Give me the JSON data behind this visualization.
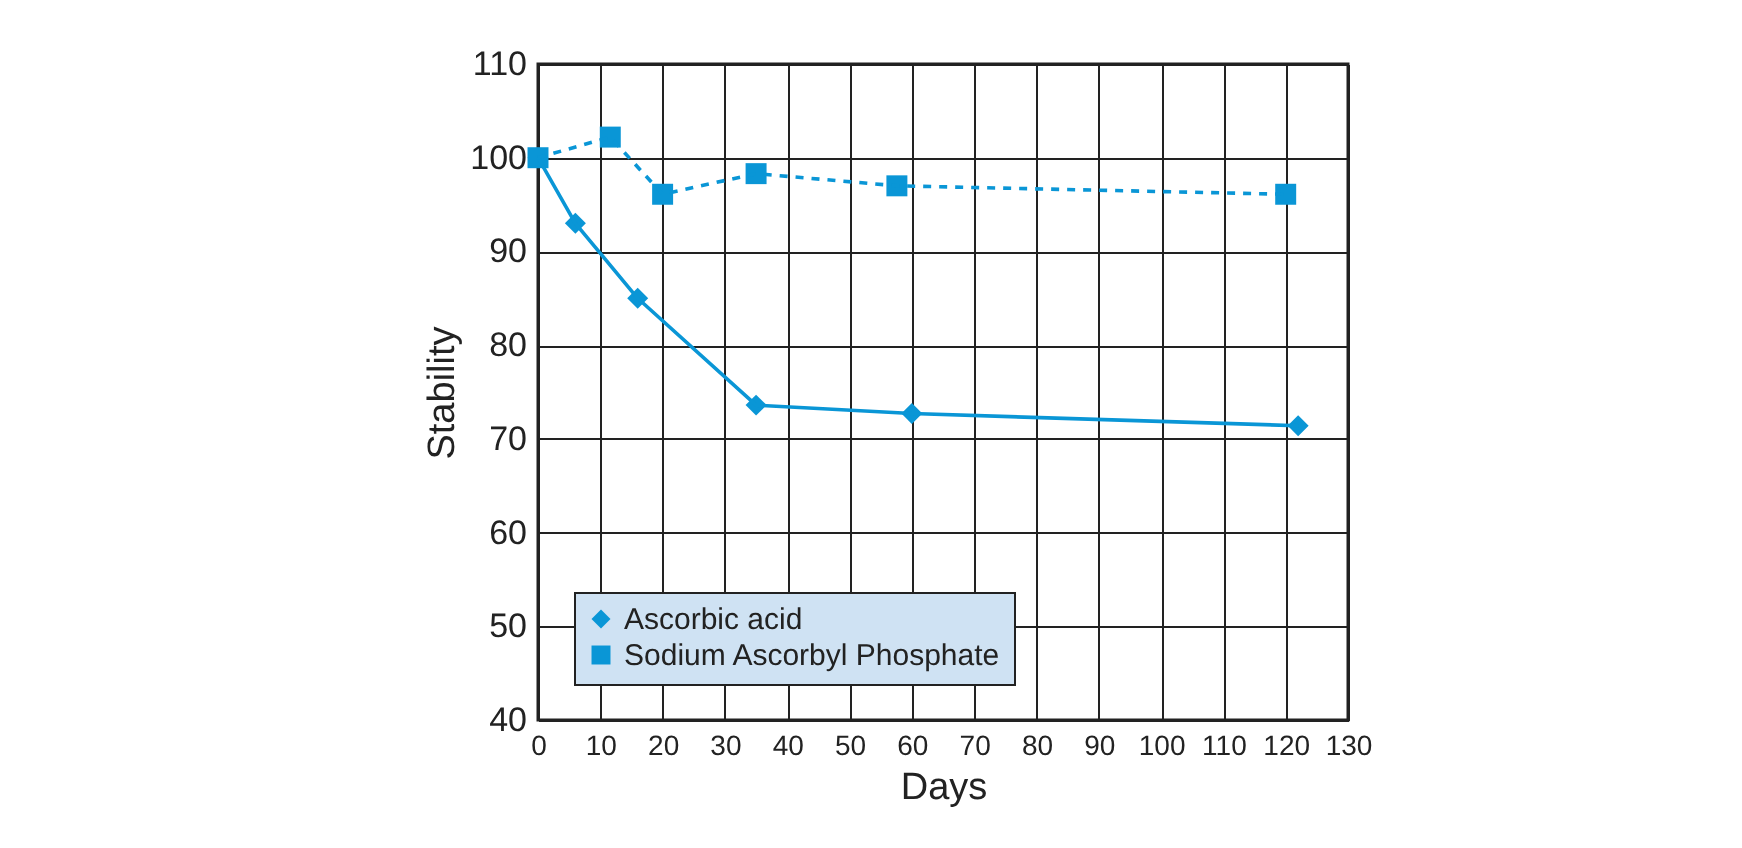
{
  "chart_data": {
    "type": "line",
    "xlabel": "Days",
    "ylabel": "Stability",
    "xlim": [
      0,
      130
    ],
    "xticks": [
      0,
      10,
      20,
      30,
      40,
      50,
      60,
      70,
      80,
      90,
      100,
      110,
      120,
      130
    ],
    "ylim": [
      40,
      110
    ],
    "yticks": [
      40,
      50,
      60,
      70,
      80,
      90,
      100,
      110
    ],
    "grid": true,
    "legend": "bottom left",
    "series": [
      {
        "name": "Ascorbic acid",
        "color": "#0a96d6",
        "marker": "diamond",
        "line_style": "solid",
        "x": [
          0,
          6,
          16,
          35,
          60,
          122
        ],
        "values": [
          100,
          93,
          85,
          73.6,
          72.7,
          71.4
        ]
      },
      {
        "name": "Sodium Ascorbyl Phosphate",
        "color": "#0a96d6",
        "marker": "square",
        "line_style": "dashed",
        "x": [
          0,
          11.6,
          20,
          35,
          57.6,
          120
        ],
        "values": [
          100,
          102.2,
          96.1,
          98.3,
          97,
          96.1
        ]
      }
    ]
  }
}
